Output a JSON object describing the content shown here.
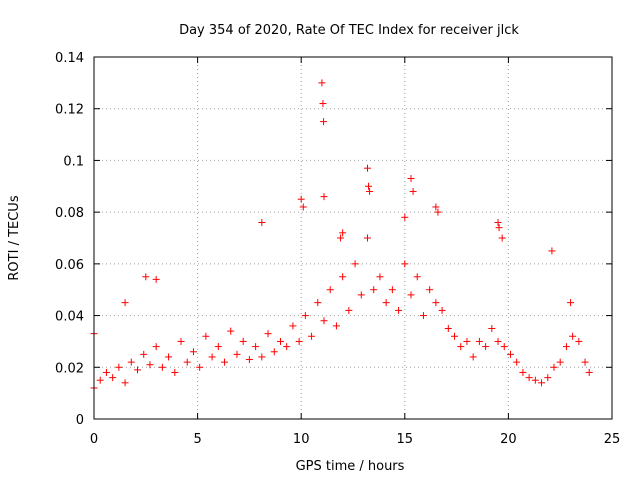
{
  "chart_data": {
    "type": "scatter",
    "title": "Day 354 of 2020, Rate Of TEC Index for receiver jlck",
    "xlabel": "GPS time / hours",
    "ylabel": "ROTI / TECUs",
    "xlim": [
      0,
      25
    ],
    "ylim": [
      0,
      0.14
    ],
    "xticks": [
      "0",
      "5",
      "10",
      "15",
      "20",
      "25"
    ],
    "xtick_values": [
      0,
      5,
      10,
      15,
      20,
      25
    ],
    "yticks": [
      "0",
      "0.02",
      "0.04",
      "0.06",
      "0.08",
      "0.1",
      "0.12",
      "0.14"
    ],
    "ytick_values": [
      0,
      0.02,
      0.04,
      0.06,
      0.08,
      0.1,
      0.12,
      0.14
    ],
    "grid": true,
    "marker": "+",
    "series_color": "#ff0000",
    "series": [
      {
        "name": "ROTI",
        "x": [
          0.0,
          0.3,
          0.6,
          0.9,
          1.2,
          1.5,
          1.8,
          2.1,
          2.4,
          2.7,
          3.0,
          3.3,
          3.6,
          3.9,
          4.2,
          4.5,
          4.8,
          5.1,
          5.4,
          5.7,
          6.0,
          6.3,
          6.6,
          6.9,
          7.2,
          7.5,
          7.8,
          8.1,
          8.4,
          8.7,
          9.0,
          9.3,
          9.6,
          9.9,
          10.2,
          10.5,
          10.8,
          11.1,
          11.4,
          11.7,
          12.0,
          12.3,
          12.6,
          12.9,
          13.2,
          13.5,
          13.8,
          14.1,
          14.4,
          14.7,
          15.0,
          15.3,
          15.6,
          15.9,
          16.2,
          16.5,
          16.8,
          17.1,
          17.4,
          17.7,
          18.0,
          18.3,
          18.6,
          18.9,
          19.2,
          19.5,
          19.8,
          20.1,
          20.4,
          20.7,
          21.0,
          21.3,
          21.6,
          21.9,
          22.2,
          22.5,
          22.8,
          23.1,
          23.4,
          23.7,
          23.9,
          0.0,
          1.5,
          2.5,
          3.0,
          8.1,
          10.0,
          10.1,
          11.0,
          11.05,
          11.08,
          11.1,
          11.9,
          12.0,
          13.2,
          13.25,
          13.3,
          15.0,
          15.3,
          15.4,
          16.5,
          16.6,
          19.5,
          19.55,
          19.7,
          22.1,
          23.0
        ],
        "y": [
          0.012,
          0.015,
          0.018,
          0.016,
          0.02,
          0.014,
          0.022,
          0.019,
          0.025,
          0.021,
          0.028,
          0.02,
          0.024,
          0.018,
          0.03,
          0.022,
          0.026,
          0.02,
          0.032,
          0.024,
          0.028,
          0.022,
          0.034,
          0.025,
          0.03,
          0.023,
          0.028,
          0.024,
          0.033,
          0.026,
          0.03,
          0.028,
          0.036,
          0.03,
          0.04,
          0.032,
          0.045,
          0.038,
          0.05,
          0.036,
          0.055,
          0.042,
          0.06,
          0.048,
          0.07,
          0.05,
          0.055,
          0.045,
          0.05,
          0.042,
          0.06,
          0.048,
          0.055,
          0.04,
          0.05,
          0.045,
          0.042,
          0.035,
          0.032,
          0.028,
          0.03,
          0.024,
          0.03,
          0.028,
          0.035,
          0.03,
          0.028,
          0.025,
          0.022,
          0.018,
          0.016,
          0.015,
          0.014,
          0.016,
          0.02,
          0.022,
          0.028,
          0.032,
          0.03,
          0.022,
          0.018,
          0.033,
          0.045,
          0.055,
          0.054,
          0.076,
          0.085,
          0.082,
          0.13,
          0.122,
          0.115,
          0.086,
          0.07,
          0.072,
          0.097,
          0.09,
          0.088,
          0.078,
          0.093,
          0.088,
          0.082,
          0.08,
          0.076,
          0.074,
          0.07,
          0.065,
          0.045
        ]
      }
    ]
  }
}
